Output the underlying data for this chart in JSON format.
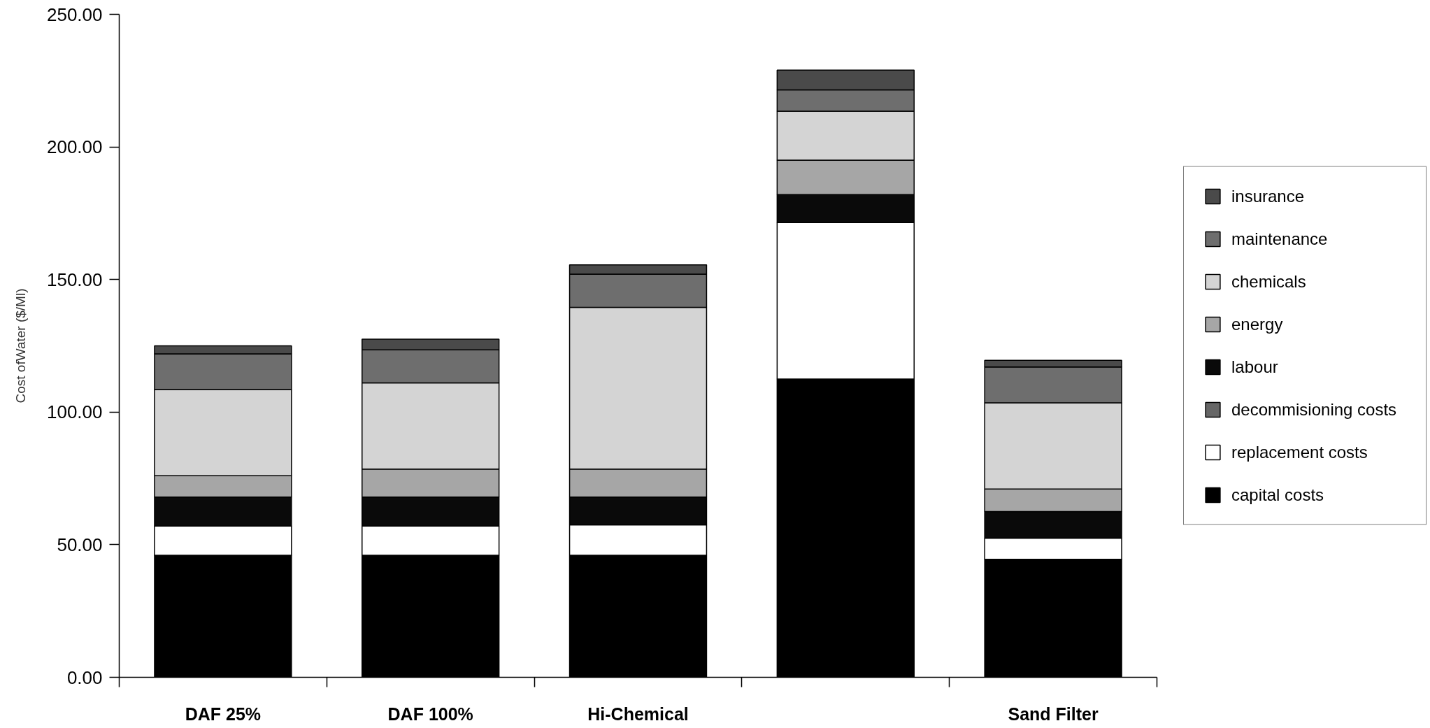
{
  "chart_data": {
    "type": "bar",
    "stacked": true,
    "ylabel": "Cost ofWater ($/Ml)",
    "categories": [
      "DAF 25%",
      "DAF 100%",
      "Hi-Chemical",
      null,
      "Sand Filter"
    ],
    "ylim": [
      0,
      250
    ],
    "yticks": [
      {
        "value": 0,
        "label": "0.00"
      },
      {
        "value": 50,
        "label": "50.00"
      },
      {
        "value": 100,
        "label": "100.00"
      },
      {
        "value": 150,
        "label": "150.00"
      },
      {
        "value": 200,
        "label": "200.00"
      },
      {
        "value": 250,
        "label": "250.00"
      }
    ],
    "grid": false,
    "legend": "right",
    "series": [
      {
        "name": "capital costs",
        "color": "#000000",
        "values": [
          46,
          46,
          46,
          112.5,
          44.5
        ]
      },
      {
        "name": "replacement costs",
        "color": "#ffffff",
        "values": [
          11,
          11,
          11.5,
          59,
          8
        ]
      },
      {
        "name": "decommisioning costs",
        "color": "#666666",
        "values": [
          0,
          0,
          0,
          0,
          0
        ]
      },
      {
        "name": "labour",
        "color": "#0a0a0a",
        "values": [
          11,
          11,
          10.5,
          10.5,
          10
        ]
      },
      {
        "name": "energy",
        "color": "#a6a6a6",
        "values": [
          8,
          10.5,
          10.5,
          13,
          8.5
        ]
      },
      {
        "name": "chemicals",
        "color": "#d4d4d4",
        "values": [
          32.5,
          32.5,
          61,
          18.5,
          32.5
        ]
      },
      {
        "name": "maintenance",
        "color": "#6e6e6e",
        "values": [
          13.5,
          12.5,
          12.5,
          8,
          13.5
        ]
      },
      {
        "name": "insurance",
        "color": "#4a4a4a",
        "values": [
          3,
          4,
          3.5,
          7.5,
          2.5
        ]
      }
    ]
  }
}
